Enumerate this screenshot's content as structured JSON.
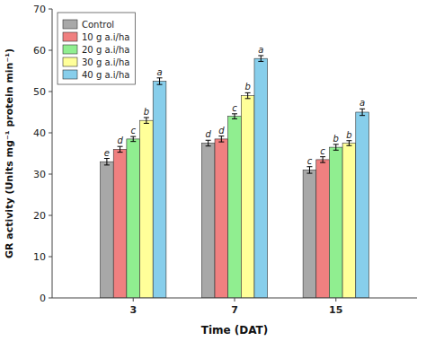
{
  "chart_data": {
    "type": "bar",
    "xlabel": "Time (DAT)",
    "ylabel": "GR activity (Units mg⁻¹ protein min⁻¹)",
    "categories": [
      "3",
      "7",
      "15"
    ],
    "series": [
      {
        "name": "Control",
        "color": "#a8a8a8",
        "values": [
          33.0,
          37.5,
          31.0
        ],
        "errors": [
          0.8,
          0.7,
          0.8
        ],
        "annotations": [
          "e",
          "d",
          "c"
        ]
      },
      {
        "name": "10 g a.i/ha",
        "color": "#f08080",
        "values": [
          36.0,
          38.5,
          33.5
        ],
        "errors": [
          0.7,
          0.7,
          0.7
        ],
        "annotations": [
          "d",
          "d",
          "c"
        ]
      },
      {
        "name": "20 g a.i/ha",
        "color": "#90ee90",
        "values": [
          38.5,
          44.0,
          36.5
        ],
        "errors": [
          0.6,
          0.6,
          0.7
        ],
        "annotations": [
          "c",
          "c",
          "b"
        ]
      },
      {
        "name": "30 g a.i/ha",
        "color": "#ffff99",
        "values": [
          43.0,
          49.0,
          37.5
        ],
        "errors": [
          0.7,
          0.7,
          0.6
        ],
        "annotations": [
          "b",
          "b",
          "b"
        ]
      },
      {
        "name": "40 g a.i/ha",
        "color": "#87ceeb",
        "values": [
          52.5,
          58.0,
          45.0
        ],
        "errors": [
          0.8,
          0.7,
          0.8
        ],
        "annotations": [
          "a",
          "a",
          "a"
        ]
      }
    ],
    "ylim": [
      0,
      70
    ],
    "yticks": [
      0,
      10,
      20,
      30,
      40,
      50,
      60,
      70
    ],
    "grid": false,
    "legend": "upper left"
  }
}
